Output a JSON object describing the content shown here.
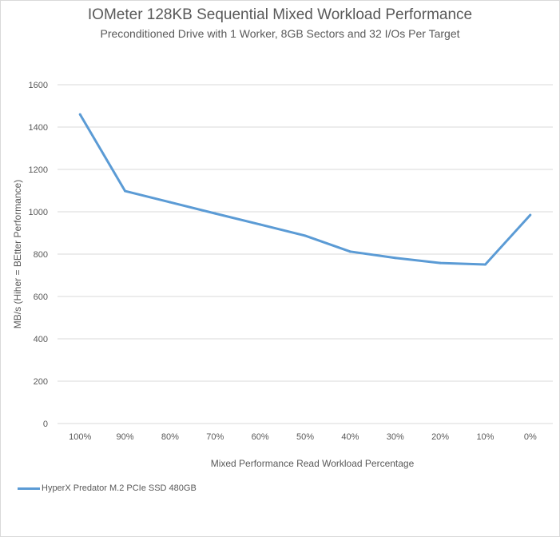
{
  "chart_data": {
    "type": "line",
    "title": "IOMeter 128KB Sequential Mixed Workload Performance",
    "subtitle": "Preconditioned  Drive with 1 Worker,  8GB Sectors and 32 I/Os Per Target",
    "xlabel": "Mixed Performance Read Workload Percentage",
    "ylabel": "MB/s (Hiher = BEtter  Performance)",
    "categories": [
      "100%",
      "90%",
      "80%",
      "70%",
      "60%",
      "50%",
      "40%",
      "30%",
      "20%",
      "10%",
      "0%"
    ],
    "ylim": [
      0,
      1600
    ],
    "yticks": [
      0,
      200,
      400,
      600,
      800,
      1000,
      1200,
      1400,
      1600
    ],
    "grid": true,
    "legend_position": "bottom-left",
    "series": [
      {
        "name": "HyperX Predator M.2 PCIe SSD 480GB",
        "color": "#5b9bd5",
        "values": [
          1460,
          1098,
          1045,
          992,
          940,
          887,
          812,
          782,
          758,
          751,
          985
        ]
      }
    ]
  }
}
